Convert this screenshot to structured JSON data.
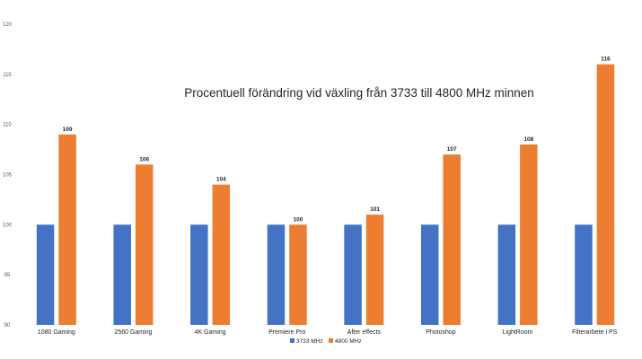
{
  "chart_data": {
    "type": "bar",
    "title": "Procentuell förändring vid växling från 3733 till 4800 MHz minnen",
    "categories": [
      "1080 Gaming",
      "2560 Gaming",
      "4K Gaming",
      "Premiere Pro",
      "After effects",
      "Photoshop",
      "LightRoom",
      "Filterarbete i PS"
    ],
    "series": [
      {
        "name": "3733 MHz",
        "color": "#4472C4",
        "values": [
          100,
          100,
          100,
          100,
          100,
          100,
          100,
          100
        ]
      },
      {
        "name": "4800 MHz",
        "color": "#ED7D31",
        "values": [
          109,
          106,
          104,
          100,
          101,
          107,
          108,
          116
        ]
      }
    ],
    "data_labels_series": "4800 MHz",
    "ylim": [
      90,
      120
    ],
    "yticks": [
      90,
      95,
      100,
      105,
      110,
      115,
      120
    ],
    "xlabel": "",
    "ylabel": "",
    "grid": false,
    "legend_position": "bottom"
  }
}
